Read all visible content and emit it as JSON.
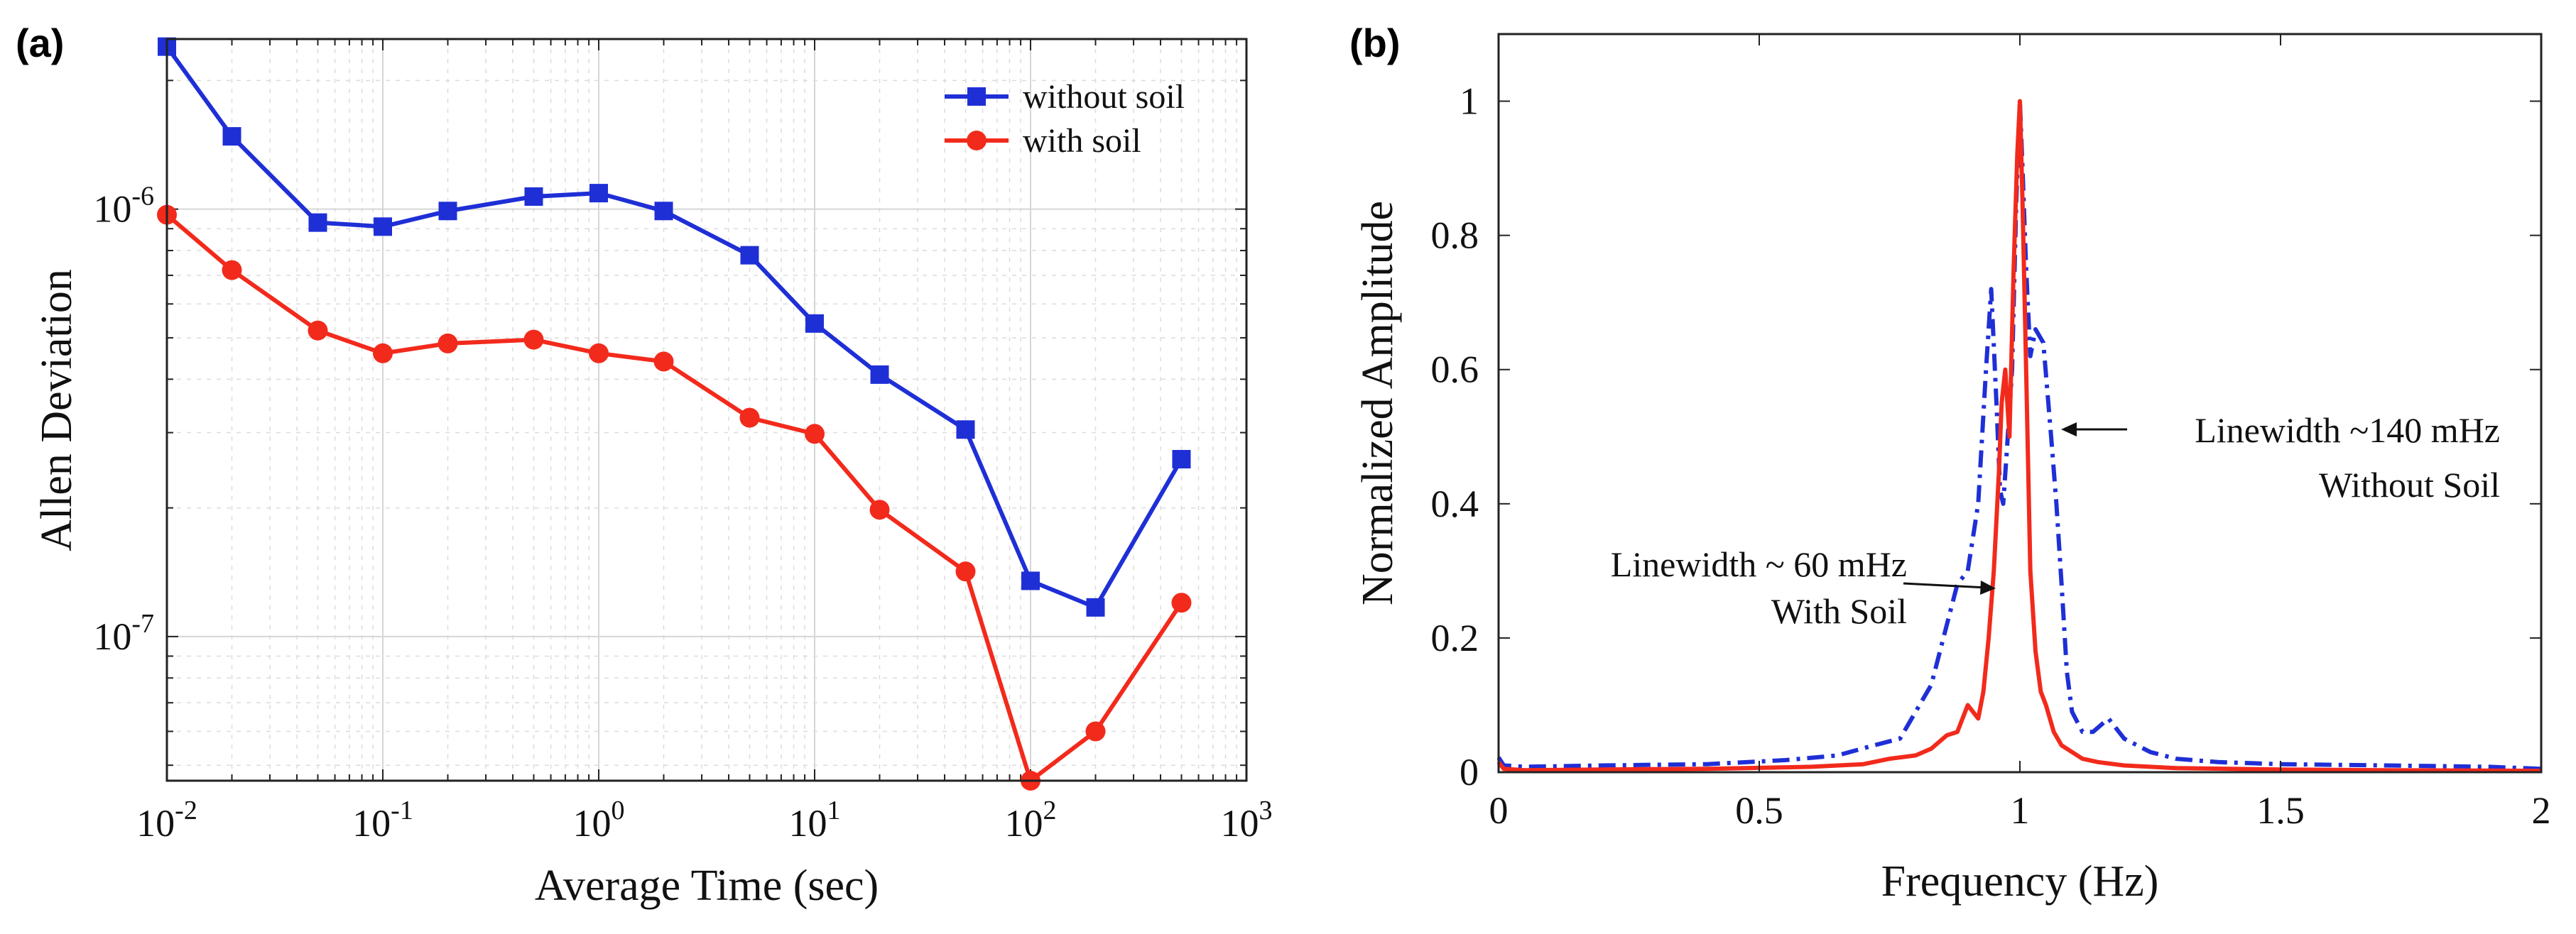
{
  "chart_data": [
    {
      "panel_label": "(a)",
      "type": "line",
      "xscale": "log",
      "yscale": "log",
      "xlabel": "Average Time (sec)",
      "ylabel": "Allen Deviation",
      "xlim": [
        0.01,
        1000
      ],
      "ylim": [
        4.6e-08,
        2.5e-06
      ],
      "grid": true,
      "x_ticks": [
        {
          "value": 0.01,
          "base": "10",
          "exp": "-2"
        },
        {
          "value": 0.1,
          "base": "10",
          "exp": "-1"
        },
        {
          "value": 1,
          "base": "10",
          "exp": "0"
        },
        {
          "value": 10,
          "base": "10",
          "exp": "1"
        },
        {
          "value": 100,
          "base": "10",
          "exp": "2"
        },
        {
          "value": 1000,
          "base": "10",
          "exp": "3"
        }
      ],
      "y_ticks": [
        {
          "value": 1e-06,
          "base": "10",
          "exp": "-6"
        },
        {
          "value": 1e-07,
          "base": "10",
          "exp": "-7"
        }
      ],
      "legend_position": "top-right",
      "x": [
        0.01,
        0.02,
        0.05,
        0.1,
        0.2,
        0.5,
        1,
        2,
        5,
        10,
        20,
        50,
        100,
        200,
        500
      ],
      "series": [
        {
          "name": "without soil",
          "color": "#1f2fd6",
          "marker": "square",
          "values": [
            2.4e-06,
            1.48e-06,
            9.3e-07,
            9.1e-07,
            9.9e-07,
            1.07e-06,
            1.09e-06,
            9.9e-07,
            7.8e-07,
            5.4e-07,
            4.1e-07,
            3.05e-07,
            1.35e-07,
            1.17e-07,
            2.6e-07
          ]
        },
        {
          "name": "with soil",
          "color": "#f22a1c",
          "marker": "circle",
          "values": [
            9.7e-07,
            7.2e-07,
            5.2e-07,
            4.6e-07,
            4.85e-07,
            4.95e-07,
            4.6e-07,
            4.4e-07,
            3.25e-07,
            2.98e-07,
            1.98e-07,
            1.42e-07,
            4.6e-08,
            6e-08,
            1.2e-07
          ]
        }
      ]
    },
    {
      "panel_label": "(b)",
      "type": "line",
      "xlabel": "Frequency (Hz)",
      "ylabel": "Normalized Amplitude",
      "xlim": [
        0,
        2
      ],
      "ylim": [
        0,
        1.1
      ],
      "grid": false,
      "x_ticks": [
        "0",
        "0.5",
        "1",
        "1.5",
        "2"
      ],
      "y_ticks": [
        "0",
        "0.2",
        "0.4",
        "0.6",
        "0.8",
        "1"
      ],
      "series": [
        {
          "name": "Without Soil",
          "color": "#1f2fd6",
          "style": "dash-dot",
          "x": [
            0,
            0.01,
            0.05,
            0.2,
            0.4,
            0.55,
            0.65,
            0.72,
            0.77,
            0.8,
            0.83,
            0.86,
            0.88,
            0.9,
            0.92,
            0.935,
            0.945,
            0.955,
            0.962,
            0.968,
            0.975,
            0.985,
            0.993,
            1.0,
            1.005,
            1.012,
            1.02,
            1.03,
            1.045,
            1.06,
            1.07,
            1.08,
            1.09,
            1.1,
            1.12,
            1.14,
            1.17,
            1.2,
            1.25,
            1.3,
            1.38,
            1.5,
            1.7,
            1.9,
            2.0
          ],
          "values": [
            0.022,
            0.01,
            0.008,
            0.01,
            0.012,
            0.018,
            0.025,
            0.04,
            0.05,
            0.09,
            0.13,
            0.22,
            0.28,
            0.3,
            0.4,
            0.6,
            0.72,
            0.55,
            0.42,
            0.4,
            0.48,
            0.6,
            0.85,
            1.0,
            0.9,
            0.75,
            0.62,
            0.66,
            0.64,
            0.5,
            0.4,
            0.28,
            0.15,
            0.09,
            0.06,
            0.06,
            0.08,
            0.05,
            0.03,
            0.02,
            0.015,
            0.012,
            0.01,
            0.008,
            0.005
          ]
        },
        {
          "name": "With Soil",
          "color": "#f22a1c",
          "style": "solid",
          "x": [
            0,
            0.01,
            0.05,
            0.2,
            0.4,
            0.6,
            0.7,
            0.75,
            0.8,
            0.83,
            0.86,
            0.88,
            0.9,
            0.92,
            0.93,
            0.94,
            0.95,
            0.96,
            0.965,
            0.972,
            0.98,
            0.988,
            0.995,
            1.0,
            1.005,
            1.012,
            1.02,
            1.03,
            1.04,
            1.05,
            1.065,
            1.08,
            1.1,
            1.12,
            1.15,
            1.2,
            1.3,
            1.5,
            1.7,
            2.0
          ],
          "values": [
            0.015,
            0.005,
            0.003,
            0.004,
            0.005,
            0.008,
            0.012,
            0.02,
            0.025,
            0.035,
            0.055,
            0.06,
            0.1,
            0.08,
            0.12,
            0.2,
            0.3,
            0.45,
            0.55,
            0.6,
            0.5,
            0.75,
            0.92,
            1.0,
            0.85,
            0.6,
            0.3,
            0.18,
            0.12,
            0.1,
            0.06,
            0.04,
            0.03,
            0.02,
            0.015,
            0.01,
            0.006,
            0.004,
            0.003,
            0.002
          ]
        }
      ],
      "annotations": [
        {
          "line1": "Linewidth ~140 mHz",
          "line2": "Without Soil",
          "x": 1.07,
          "y": 0.515
        },
        {
          "line1": "Linewidth ~ 60 mHz",
          "line2": "With Soil",
          "x": 0.955,
          "y": 0.27
        }
      ]
    }
  ]
}
